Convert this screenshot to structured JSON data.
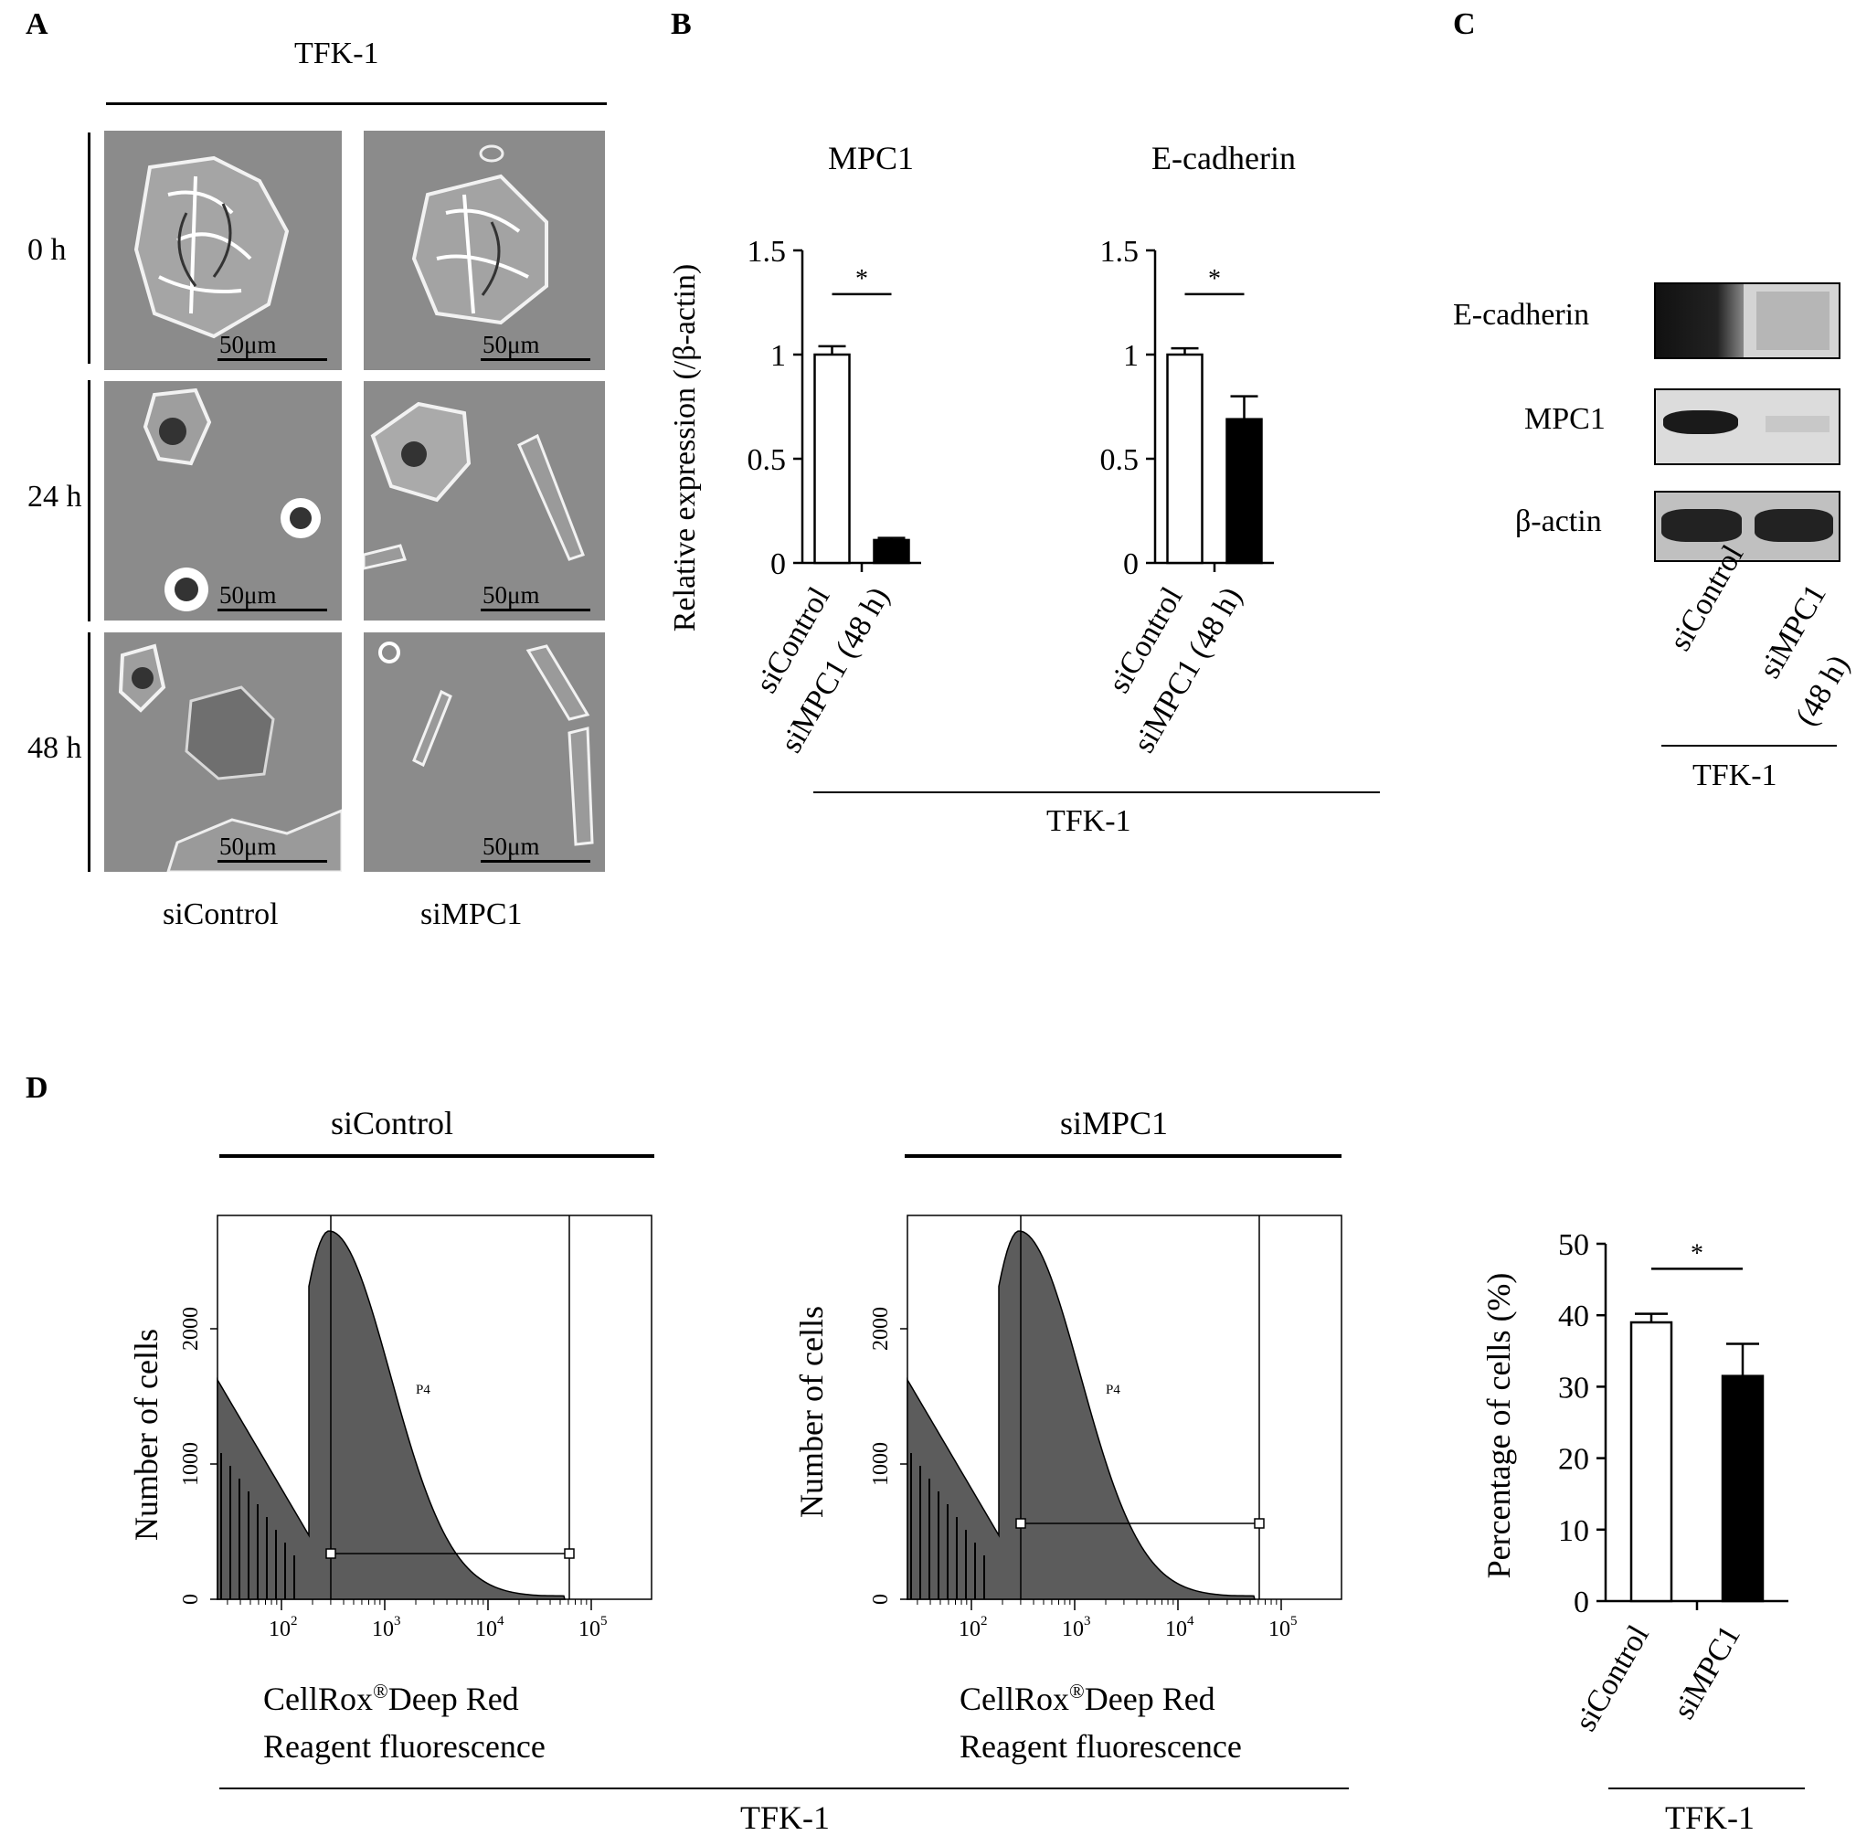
{
  "panels": {
    "A": {
      "letter": "A",
      "cell_line": "TFK-1",
      "rows": [
        "0 h",
        "24 h",
        "48 h"
      ],
      "columns": [
        "siControl",
        "siMPC1"
      ],
      "scale_label": "50μm"
    },
    "B": {
      "letter": "B",
      "cell_line": "TFK-1",
      "ylabel": "Relative expression (/β-actin)",
      "significance": "*"
    },
    "C": {
      "letter": "C",
      "cell_line": "TFK-1",
      "bands": [
        "E-cadherin",
        "MPC1",
        "β-actin"
      ],
      "lanes": [
        "siControl",
        "siMPC1 (48 h)"
      ],
      "lane2_line1": "siMPC1",
      "lane2_line2": "(48 h)"
    },
    "D": {
      "letter": "D",
      "cell_line": "TFK-1",
      "gate_label": "P4",
      "flow_ylabel": "Number of cells",
      "flow_xlabel_line1": "CellRox",
      "flow_xlabel_reg": "®",
      "flow_xlabel_line1b": "Deep Red",
      "flow_xlabel_line2": "Reagent fluorescence",
      "flow_plots": [
        {
          "title": "siControl"
        },
        {
          "title": "siMPC1"
        }
      ],
      "flow_yticks": [
        "0",
        "1000",
        "2000"
      ],
      "flow_xticks": [
        "10",
        "10",
        "10",
        "10"
      ],
      "flow_xtick_exps": [
        "2",
        "3",
        "4",
        "5"
      ]
    }
  },
  "chart_data": [
    {
      "type": "bar",
      "title": "MPC1",
      "categories": [
        "siControl",
        "siMPC1 (48 h)"
      ],
      "values": [
        1.0,
        0.11
      ],
      "errors": [
        0.04,
        0.01
      ],
      "fill": [
        "#ffffff",
        "#000000"
      ],
      "ylabel": "Relative expression (/β-actin)",
      "ylim": [
        0,
        1.5
      ],
      "yticks": [
        "0",
        "0.5",
        "1",
        "1.5"
      ],
      "significance": "*"
    },
    {
      "type": "bar",
      "title": "E-cadherin",
      "categories": [
        "siControl",
        "siMPC1 (48 h)"
      ],
      "values": [
        1.0,
        0.69
      ],
      "errors": [
        0.03,
        0.11
      ],
      "fill": [
        "#ffffff",
        "#000000"
      ],
      "ylim": [
        0,
        1.5
      ],
      "yticks": [
        "0",
        "0.5",
        "1",
        "1.5"
      ],
      "significance": "*"
    },
    {
      "type": "bar",
      "title": "",
      "categories": [
        "siControl",
        "siMPC1"
      ],
      "values": [
        39,
        31.5
      ],
      "errors": [
        1.2,
        4.5
      ],
      "fill": [
        "#ffffff",
        "#000000"
      ],
      "ylabel": "Percentage of  cells (%)",
      "ylim": [
        0,
        50
      ],
      "yticks": [
        "0",
        "10",
        "20",
        "30",
        "40",
        "50"
      ],
      "significance": "*"
    }
  ]
}
